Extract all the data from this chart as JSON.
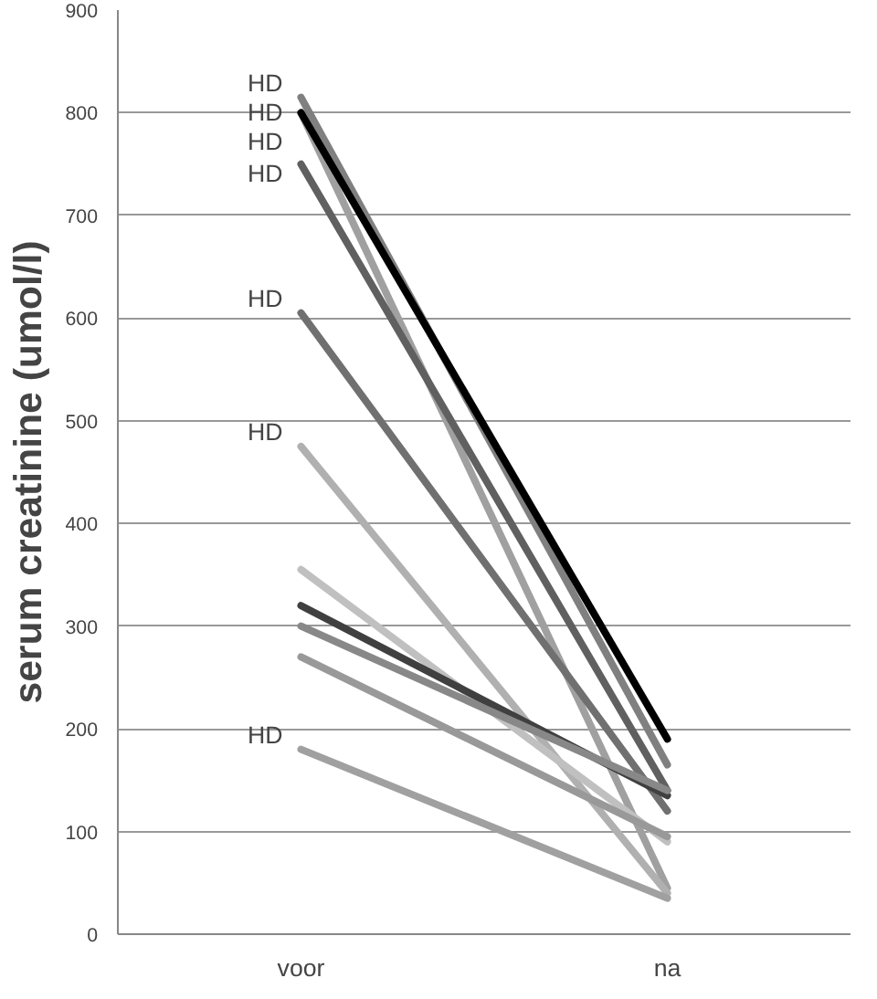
{
  "chart_data": {
    "type": "line",
    "ylabel": "serum creatinine (umol/l)",
    "categories": [
      "voor",
      "na"
    ],
    "ylim": [
      0,
      900
    ],
    "yticks": [
      0,
      100,
      200,
      300,
      400,
      500,
      600,
      700,
      800,
      900
    ],
    "grid": "y",
    "series": [
      {
        "color": "#808080",
        "values": [
          815,
          165
        ]
      },
      {
        "color": "#a0a0a0",
        "values": [
          800,
          45
        ]
      },
      {
        "color": "#000000",
        "values": [
          800,
          190
        ]
      },
      {
        "color": "#606060",
        "values": [
          750,
          140
        ]
      },
      {
        "color": "#707070",
        "values": [
          605,
          120
        ]
      },
      {
        "color": "#b0b0b0",
        "values": [
          475,
          40
        ]
      },
      {
        "color": "#c0c0c0",
        "values": [
          355,
          90
        ]
      },
      {
        "color": "#404040",
        "values": [
          320,
          135
        ]
      },
      {
        "color": "#888888",
        "values": [
          300,
          140
        ]
      },
      {
        "color": "#999999",
        "values": [
          270,
          95
        ]
      },
      {
        "color": "#a0a0a0",
        "values": [
          180,
          35
        ]
      }
    ],
    "annotations": [
      {
        "text": "HD",
        "x": "voor",
        "y": 815
      },
      {
        "text": "HD",
        "x": "voor",
        "y": 800
      },
      {
        "text": "HD",
        "x": "voor",
        "y": 800
      },
      {
        "text": "HD",
        "x": "voor",
        "y": 750
      },
      {
        "text": "HD",
        "x": "voor",
        "y": 605
      },
      {
        "text": "HD",
        "x": "voor",
        "y": 475
      },
      {
        "text": "HD",
        "x": "voor",
        "y": 180
      }
    ]
  }
}
